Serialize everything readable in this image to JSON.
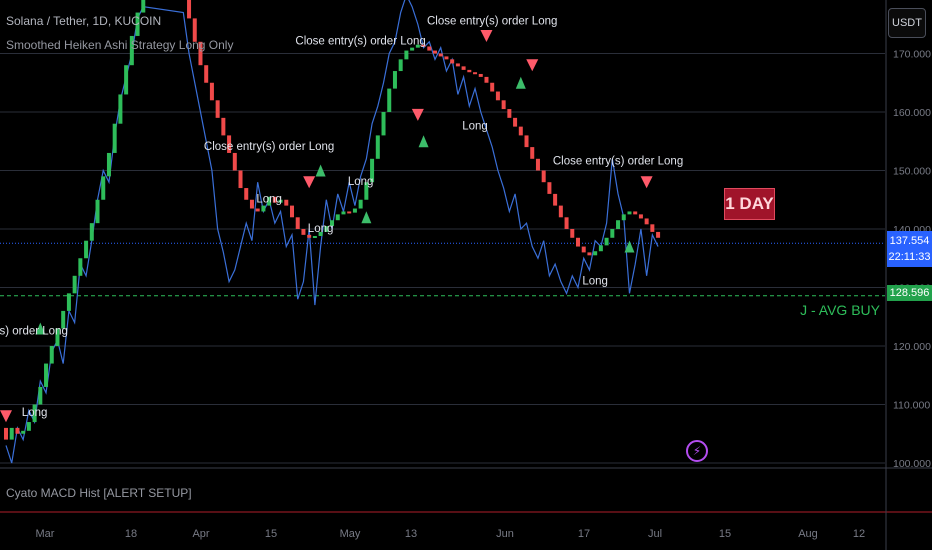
{
  "header": {
    "symbol": "Solana / Tether, 1D, KUCOIN",
    "study": "Smoothed Heiken Ashi Strategy Long Only",
    "macd": "Cyato MACD Hist [ALERT SETUP]"
  },
  "currency_button": "USDT",
  "last_price": {
    "value": "137.554",
    "countdown": "22:11:33"
  },
  "avg_buy": {
    "value": "128.596",
    "label": "J - AVG BUY"
  },
  "timeframe_badge": "1 DAY",
  "colors": {
    "bull": "#2ebd5a",
    "bear": "#f04a4a",
    "line": "#3a6fd8",
    "grid": "#2a2e39"
  },
  "chart_data": {
    "type": "candlestick",
    "y_axis": {
      "min": 99,
      "max": 175,
      "ticks": [
        "100.000",
        "110.000",
        "120.000",
        "130.000",
        "140.000",
        "150.000",
        "160.000",
        "170.000"
      ]
    },
    "x_axis": {
      "ticks": [
        "Mar",
        "18",
        "Apr",
        "15",
        "May",
        "13",
        "Jun",
        "17",
        "Jul",
        "15",
        "Aug",
        "12"
      ]
    },
    "signals": [
      {
        "text": "y(s) order Long",
        "day": 4,
        "price": 122
      },
      {
        "text": "Long",
        "day": 5,
        "price": 108
      },
      {
        "text": "Close entry(s) order Long",
        "day": 46,
        "price": 153.5
      },
      {
        "text": "Long",
        "day": 46,
        "price": 144.5
      },
      {
        "text": "Close entry(s) order Long",
        "day": 62,
        "price": 171.5
      },
      {
        "text": "Long",
        "day": 62,
        "price": 147.5
      },
      {
        "text": "Long",
        "day": 55,
        "price": 139.5
      },
      {
        "text": "Close entry(s) order Long",
        "day": 85,
        "price": 175
      },
      {
        "text": "Long",
        "day": 82,
        "price": 157
      },
      {
        "text": "Close entry(s) order Long",
        "day": 107,
        "price": 151
      },
      {
        "text": "Long",
        "day": 103,
        "price": 130.5
      }
    ],
    "candles": [
      {
        "d": 0,
        "o": 106,
        "c": 104
      },
      {
        "d": 1,
        "o": 104,
        "c": 106
      },
      {
        "d": 2,
        "o": 106,
        "c": 105
      },
      {
        "d": 3,
        "o": 105,
        "c": 105.5
      },
      {
        "d": 4,
        "o": 105.5,
        "c": 107
      },
      {
        "d": 5,
        "o": 107,
        "c": 110
      },
      {
        "d": 6,
        "o": 110,
        "c": 113
      },
      {
        "d": 7,
        "o": 113,
        "c": 117
      },
      {
        "d": 8,
        "o": 117,
        "c": 120
      },
      {
        "d": 9,
        "o": 120,
        "c": 123
      },
      {
        "d": 10,
        "o": 123,
        "c": 126
      },
      {
        "d": 11,
        "o": 126,
        "c": 129
      },
      {
        "d": 12,
        "o": 129,
        "c": 132
      },
      {
        "d": 13,
        "o": 132,
        "c": 135
      },
      {
        "d": 14,
        "o": 135,
        "c": 138
      },
      {
        "d": 15,
        "o": 138,
        "c": 141
      },
      {
        "d": 16,
        "o": 141,
        "c": 145
      },
      {
        "d": 17,
        "o": 145,
        "c": 149
      },
      {
        "d": 18,
        "o": 149,
        "c": 153
      },
      {
        "d": 19,
        "o": 153,
        "c": 158
      },
      {
        "d": 20,
        "o": 158,
        "c": 163
      },
      {
        "d": 21,
        "o": 163,
        "c": 168
      },
      {
        "d": 22,
        "o": 168,
        "c": 173
      },
      {
        "d": 23,
        "o": 173,
        "c": 177
      },
      {
        "d": 24,
        "o": 177,
        "c": 180
      },
      {
        "d": 32,
        "o": 180,
        "c": 176
      },
      {
        "d": 33,
        "o": 176,
        "c": 172
      },
      {
        "d": 34,
        "o": 172,
        "c": 168
      },
      {
        "d": 35,
        "o": 168,
        "c": 165
      },
      {
        "d": 36,
        "o": 165,
        "c": 162
      },
      {
        "d": 37,
        "o": 162,
        "c": 159
      },
      {
        "d": 38,
        "o": 159,
        "c": 156
      },
      {
        "d": 39,
        "o": 156,
        "c": 153
      },
      {
        "d": 40,
        "o": 153,
        "c": 150
      },
      {
        "d": 41,
        "o": 150,
        "c": 147
      },
      {
        "d": 42,
        "o": 147,
        "c": 145
      },
      {
        "d": 43,
        "o": 145,
        "c": 143.5
      },
      {
        "d": 44,
        "o": 143.5,
        "c": 143
      },
      {
        "d": 45,
        "o": 143,
        "c": 144
      },
      {
        "d": 46,
        "o": 144,
        "c": 145.5
      },
      {
        "d": 47,
        "o": 145.5,
        "c": 144.5
      },
      {
        "d": 48,
        "o": 144.5,
        "c": 145
      },
      {
        "d": 49,
        "o": 145,
        "c": 144
      },
      {
        "d": 50,
        "o": 144,
        "c": 142
      },
      {
        "d": 51,
        "o": 142,
        "c": 140
      },
      {
        "d": 52,
        "o": 140,
        "c": 139
      },
      {
        "d": 53,
        "o": 139,
        "c": 138.5
      },
      {
        "d": 54,
        "o": 138.5,
        "c": 138.8
      },
      {
        "d": 55,
        "o": 138.8,
        "c": 139.5
      },
      {
        "d": 56,
        "o": 139.5,
        "c": 140.5
      },
      {
        "d": 57,
        "o": 140.5,
        "c": 141.5
      },
      {
        "d": 58,
        "o": 141.5,
        "c": 142.5
      },
      {
        "d": 59,
        "o": 142.5,
        "c": 143
      },
      {
        "d": 60,
        "o": 143,
        "c": 142.8
      },
      {
        "d": 61,
        "o": 142.8,
        "c": 143.5
      },
      {
        "d": 62,
        "o": 143.5,
        "c": 145
      },
      {
        "d": 63,
        "o": 145,
        "c": 148
      },
      {
        "d": 64,
        "o": 148,
        "c": 152
      },
      {
        "d": 65,
        "o": 152,
        "c": 156
      },
      {
        "d": 66,
        "o": 156,
        "c": 160
      },
      {
        "d": 67,
        "o": 160,
        "c": 164
      },
      {
        "d": 68,
        "o": 164,
        "c": 167
      },
      {
        "d": 69,
        "o": 167,
        "c": 169
      },
      {
        "d": 70,
        "o": 169,
        "c": 170.5
      },
      {
        "d": 71,
        "o": 170.5,
        "c": 171
      },
      {
        "d": 72,
        "o": 171,
        "c": 171.5
      },
      {
        "d": 73,
        "o": 171.5,
        "c": 171.2
      },
      {
        "d": 74,
        "o": 171.2,
        "c": 170.5
      },
      {
        "d": 75,
        "o": 170.5,
        "c": 170
      },
      {
        "d": 76,
        "o": 170,
        "c": 169.5
      },
      {
        "d": 77,
        "o": 169.5,
        "c": 169
      },
      {
        "d": 78,
        "o": 169,
        "c": 168.3
      },
      {
        "d": 79,
        "o": 168.3,
        "c": 167.8
      },
      {
        "d": 80,
        "o": 167.8,
        "c": 167.2
      },
      {
        "d": 81,
        "o": 167.2,
        "c": 166.8
      },
      {
        "d": 82,
        "o": 166.8,
        "c": 166.5
      },
      {
        "d": 83,
        "o": 166.5,
        "c": 166
      },
      {
        "d": 84,
        "o": 166,
        "c": 165
      },
      {
        "d": 85,
        "o": 165,
        "c": 163.5
      },
      {
        "d": 86,
        "o": 163.5,
        "c": 162
      },
      {
        "d": 87,
        "o": 162,
        "c": 160.5
      },
      {
        "d": 88,
        "o": 160.5,
        "c": 159
      },
      {
        "d": 89,
        "o": 159,
        "c": 157.5
      },
      {
        "d": 90,
        "o": 157.5,
        "c": 156
      },
      {
        "d": 91,
        "o": 156,
        "c": 154
      },
      {
        "d": 92,
        "o": 154,
        "c": 152
      },
      {
        "d": 93,
        "o": 152,
        "c": 150
      },
      {
        "d": 94,
        "o": 150,
        "c": 148
      },
      {
        "d": 95,
        "o": 148,
        "c": 146
      },
      {
        "d": 96,
        "o": 146,
        "c": 144
      },
      {
        "d": 97,
        "o": 144,
        "c": 142
      },
      {
        "d": 98,
        "o": 142,
        "c": 140
      },
      {
        "d": 99,
        "o": 140,
        "c": 138.5
      },
      {
        "d": 100,
        "o": 138.5,
        "c": 137
      },
      {
        "d": 101,
        "o": 137,
        "c": 136
      },
      {
        "d": 102,
        "o": 136,
        "c": 135.5
      },
      {
        "d": 103,
        "o": 135.5,
        "c": 136.2
      },
      {
        "d": 104,
        "o": 136.2,
        "c": 137.2
      },
      {
        "d": 105,
        "o": 137.2,
        "c": 138.5
      },
      {
        "d": 106,
        "o": 138.5,
        "c": 140
      },
      {
        "d": 107,
        "o": 140,
        "c": 141.5
      },
      {
        "d": 108,
        "o": 141.5,
        "c": 142.5
      },
      {
        "d": 109,
        "o": 142.5,
        "c": 143
      },
      {
        "d": 110,
        "o": 143,
        "c": 142.5
      },
      {
        "d": 111,
        "o": 142.5,
        "c": 141.8
      },
      {
        "d": 112,
        "o": 141.8,
        "c": 140.8
      },
      {
        "d": 113,
        "o": 140.8,
        "c": 139.5
      },
      {
        "d": 114,
        "o": 139.5,
        "c": 138.5
      }
    ],
    "close_line": [
      [
        0,
        103
      ],
      [
        1,
        100
      ],
      [
        2,
        106
      ],
      [
        3,
        104
      ],
      [
        4,
        109
      ],
      [
        5,
        107
      ],
      [
        6,
        114
      ],
      [
        7,
        112
      ],
      [
        8,
        119
      ],
      [
        9,
        121
      ],
      [
        10,
        117
      ],
      [
        11,
        126
      ],
      [
        12,
        124
      ],
      [
        13,
        134
      ],
      [
        14,
        132
      ],
      [
        15,
        138
      ],
      [
        16,
        145
      ],
      [
        17,
        150
      ],
      [
        18,
        148
      ],
      [
        19,
        156
      ],
      [
        20,
        162
      ],
      [
        21,
        166
      ],
      [
        22,
        170
      ],
      [
        23,
        176
      ],
      [
        24,
        178
      ],
      [
        31,
        177
      ],
      [
        32,
        170
      ],
      [
        33,
        165
      ],
      [
        34,
        160
      ],
      [
        35,
        155
      ],
      [
        36,
        150
      ],
      [
        37,
        140
      ],
      [
        38,
        136
      ],
      [
        39,
        131
      ],
      [
        40,
        133
      ],
      [
        41,
        137
      ],
      [
        42,
        141
      ],
      [
        43,
        138
      ],
      [
        44,
        148
      ],
      [
        45,
        143
      ],
      [
        46,
        145
      ],
      [
        47,
        141
      ],
      [
        48,
        143
      ],
      [
        49,
        137
      ],
      [
        50,
        139
      ],
      [
        51,
        128
      ],
      [
        52,
        131
      ],
      [
        53,
        140
      ],
      [
        54,
        127
      ],
      [
        55,
        137
      ],
      [
        56,
        145
      ],
      [
        57,
        140
      ],
      [
        58,
        146
      ],
      [
        59,
        143
      ],
      [
        60,
        148
      ],
      [
        61,
        144
      ],
      [
        62,
        149
      ],
      [
        63,
        152
      ],
      [
        64,
        158
      ],
      [
        65,
        161
      ],
      [
        66,
        165
      ],
      [
        67,
        170
      ],
      [
        68,
        172
      ],
      [
        69,
        177
      ],
      [
        70,
        180
      ],
      [
        71,
        178
      ],
      [
        72,
        175
      ],
      [
        73,
        171
      ],
      [
        74,
        172
      ],
      [
        75,
        169
      ],
      [
        76,
        171
      ],
      [
        77,
        167
      ],
      [
        78,
        169
      ],
      [
        79,
        163
      ],
      [
        80,
        166
      ],
      [
        81,
        161
      ],
      [
        82,
        164
      ],
      [
        83,
        160
      ],
      [
        84,
        157
      ],
      [
        85,
        154
      ],
      [
        86,
        150
      ],
      [
        87,
        147
      ],
      [
        88,
        143
      ],
      [
        89,
        146
      ],
      [
        90,
        140
      ],
      [
        91,
        141
      ],
      [
        92,
        137
      ],
      [
        93,
        135
      ],
      [
        94,
        138
      ],
      [
        95,
        132
      ],
      [
        96,
        134
      ],
      [
        97,
        131
      ],
      [
        98,
        129
      ],
      [
        99,
        132
      ],
      [
        100,
        130
      ],
      [
        101,
        135
      ],
      [
        102,
        133
      ],
      [
        103,
        138
      ],
      [
        104,
        137
      ],
      [
        105,
        141
      ],
      [
        106,
        152
      ],
      [
        107,
        146
      ],
      [
        108,
        142
      ],
      [
        109,
        129
      ],
      [
        110,
        134
      ],
      [
        111,
        140
      ],
      [
        112,
        132
      ],
      [
        113,
        139
      ],
      [
        114,
        137
      ]
    ]
  }
}
